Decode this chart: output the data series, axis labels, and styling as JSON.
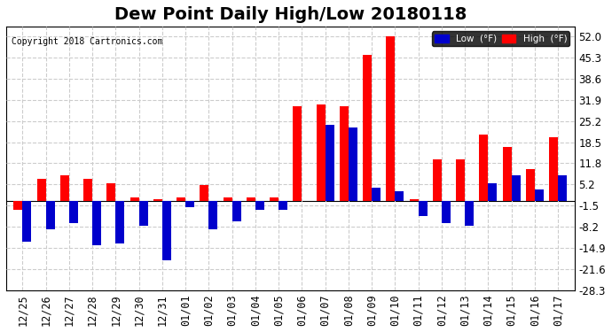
{
  "title": "Dew Point Daily High/Low 20180118",
  "copyright": "Copyright 2018 Cartronics.com",
  "ylabel_right": [
    "52.0",
    "45.3",
    "38.6",
    "31.9",
    "25.2",
    "18.5",
    "11.8",
    "5.2",
    "-1.5",
    "-8.2",
    "-14.9",
    "-21.6",
    "-28.3"
  ],
  "yticks": [
    52.0,
    45.3,
    38.6,
    31.9,
    25.2,
    18.5,
    11.8,
    5.2,
    -1.5,
    -8.2,
    -14.9,
    -21.6,
    -28.3
  ],
  "ylim": [
    -28.3,
    55.0
  ],
  "dates": [
    "12/25",
    "12/26",
    "12/27",
    "12/28",
    "12/29",
    "12/30",
    "12/31",
    "01/01",
    "01/02",
    "01/03",
    "01/04",
    "01/05",
    "01/06",
    "01/07",
    "01/08",
    "01/09",
    "01/10",
    "01/11",
    "01/12",
    "01/13",
    "01/14",
    "01/15",
    "01/16",
    "01/17"
  ],
  "high": [
    -3.0,
    7.0,
    8.0,
    7.0,
    5.5,
    1.0,
    0.5,
    1.0,
    5.0,
    1.0,
    1.0,
    1.0,
    30.0,
    30.5,
    30.0,
    46.0,
    52.0,
    0.5,
    13.0,
    13.0,
    21.0,
    17.0,
    10.0,
    20.0
  ],
  "low": [
    -13.0,
    -9.0,
    -7.0,
    -14.0,
    -13.5,
    -8.0,
    -19.0,
    -2.0,
    -9.0,
    -6.5,
    -3.0,
    -3.0,
    0.0,
    24.0,
    23.0,
    4.0,
    3.0,
    -5.0,
    -7.0,
    -8.0,
    5.5,
    8.0,
    3.5,
    8.0
  ],
  "bar_color_high": "#ff0000",
  "bar_color_low": "#0000cc",
  "bg_color": "#ffffff",
  "grid_color": "#cccccc",
  "title_fontsize": 14,
  "tick_fontsize": 8.5,
  "legend_low_label": "Low  (°F)",
  "legend_high_label": "High  (°F)"
}
